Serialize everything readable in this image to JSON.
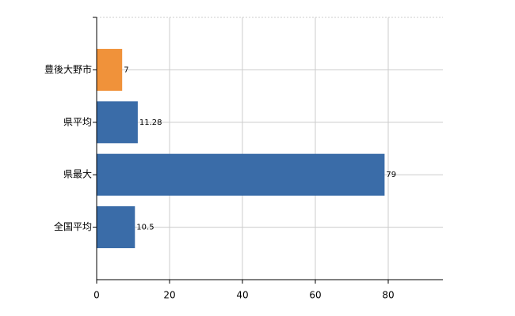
{
  "chart_data": {
    "type": "hbar",
    "categories": [
      "豊後大野市",
      "県平均",
      "県最大",
      "全国平均"
    ],
    "values": [
      7,
      11.28,
      79,
      10.5
    ],
    "colors": [
      "#f0923a",
      "#3a6ca8",
      "#3a6ca8",
      "#3a6ca8"
    ],
    "xlim": [
      0,
      95
    ],
    "xticks": [
      0,
      20,
      40,
      60,
      80
    ],
    "grid": true
  }
}
